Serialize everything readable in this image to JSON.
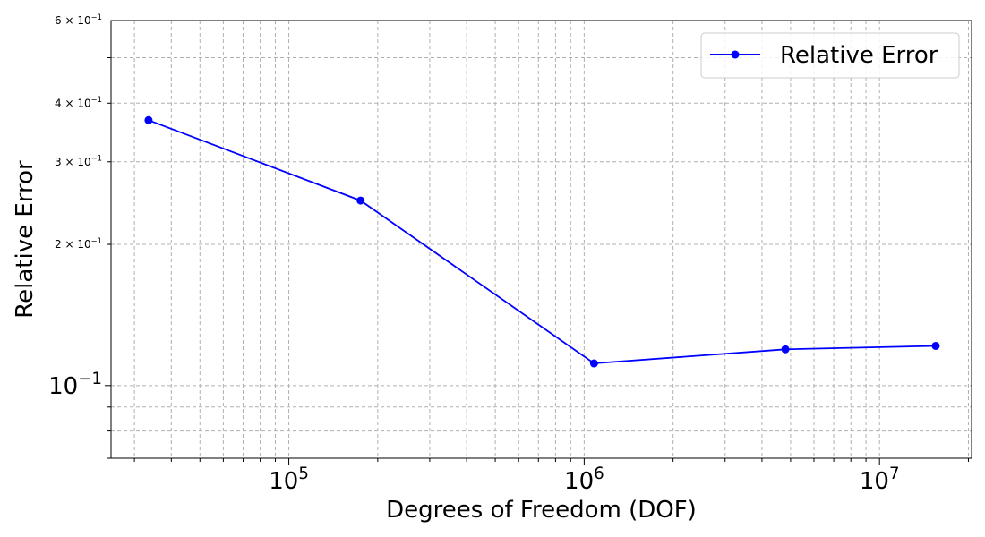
{
  "chart_data": {
    "type": "line",
    "title": "",
    "xlabel": "Degrees of Freedom (DOF)",
    "ylabel": "Relative Error",
    "xscale": "log",
    "yscale": "log",
    "xlim": [
      25000,
      20500000
    ],
    "ylim": [
      0.07,
      0.6
    ],
    "grid": true,
    "legend_position": "top-right",
    "x_ticks": [
      {
        "value": 100000,
        "base": "10",
        "exp": "5"
      },
      {
        "value": 1000000,
        "base": "10",
        "exp": "6"
      },
      {
        "value": 10000000,
        "base": "10",
        "exp": "7"
      }
    ],
    "y_ticks": [
      {
        "value": 0.1,
        "base": "10",
        "exp": "−1",
        "major": true
      },
      {
        "value": 0.2,
        "base": "2 × 10",
        "exp": "−1",
        "major": false
      },
      {
        "value": 0.3,
        "base": "3 × 10",
        "exp": "−1",
        "major": false
      },
      {
        "value": 0.4,
        "base": "4 × 10",
        "exp": "−1",
        "major": false
      },
      {
        "value": 0.6,
        "base": "6 × 10",
        "exp": "−1",
        "major": false
      }
    ],
    "series": [
      {
        "name": "Relative Error",
        "color": "#0000ff",
        "marker": "circle",
        "x": [
          33500,
          175000,
          1080000,
          4800000,
          15500000
        ],
        "y": [
          0.368,
          0.248,
          0.1115,
          0.1195,
          0.1215
        ]
      }
    ]
  }
}
